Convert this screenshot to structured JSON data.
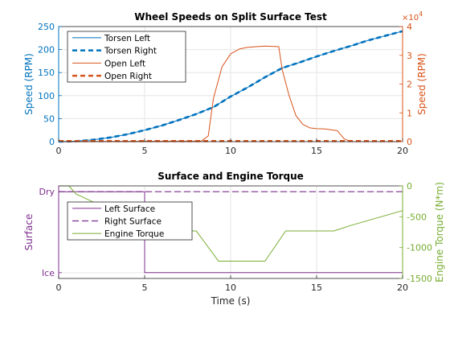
{
  "figure": {
    "colors": {
      "blue": "#0072bd",
      "orange": "#d95319",
      "purple": "#7e2f8e",
      "green": "#77ac30",
      "axis": "#262626",
      "grid": "#e6e6e6"
    }
  },
  "chart_data": [
    {
      "type": "line",
      "title": "Wheel Speeds on Split Surface Test",
      "xlim": [
        0,
        20
      ],
      "xticks": [
        "0",
        "5",
        "10",
        "15",
        "20"
      ],
      "xlabel": "",
      "left_axis": {
        "label": "Speed (RPM)",
        "ylim": [
          0,
          250
        ],
        "ticks": [
          "0",
          "50",
          "100",
          "150",
          "200",
          "250"
        ],
        "color": "#0072bd"
      },
      "right_axis": {
        "label": "Speed (RPM)",
        "ylim": [
          0,
          4
        ],
        "ticks": [
          "0",
          "1",
          "2",
          "3",
          "4"
        ],
        "exponent_base": "×10",
        "exponent_power": "4",
        "color": "#d95319"
      },
      "grid": true,
      "legend_position": "top-left",
      "series": [
        {
          "name": "Torsen Left",
          "axis": "left",
          "style": "solid",
          "color": "#0072bd",
          "x": [
            0,
            1,
            2,
            3,
            4,
            5,
            6,
            7,
            8,
            9,
            10,
            11,
            12,
            13,
            14,
            15,
            16,
            17,
            18,
            19,
            20
          ],
          "y": [
            0,
            1,
            4,
            9,
            16,
            25,
            35,
            47,
            60,
            75,
            98,
            118,
            140,
            160,
            172,
            185,
            197,
            208,
            220,
            230,
            240
          ]
        },
        {
          "name": "Torsen Right",
          "axis": "left",
          "style": "dashed",
          "color": "#0072bd",
          "x": [
            0,
            1,
            2,
            3,
            4,
            5,
            6,
            7,
            8,
            9,
            10,
            11,
            12,
            13,
            14,
            15,
            16,
            17,
            18,
            19,
            20
          ],
          "y": [
            0,
            1,
            4,
            9,
            16,
            25,
            35,
            47,
            60,
            75,
            98,
            118,
            140,
            160,
            172,
            185,
            197,
            208,
            220,
            230,
            240
          ]
        },
        {
          "name": "Open Left",
          "axis": "right",
          "style": "solid",
          "color": "#d95319",
          "x": [
            0,
            8.3,
            8.7,
            9.0,
            9.5,
            10.0,
            10.5,
            11.0,
            12.0,
            12.8,
            13.0,
            13.4,
            13.8,
            14.2,
            14.6,
            15.0,
            15.5,
            16.2,
            16.6,
            17.0,
            20
          ],
          "y": [
            0,
            0.02,
            0.2,
            1.5,
            2.6,
            3.05,
            3.22,
            3.28,
            3.32,
            3.3,
            2.5,
            1.6,
            0.9,
            0.6,
            0.48,
            0.45,
            0.44,
            0.38,
            0.1,
            0.0,
            0.0
          ]
        },
        {
          "name": "Open Right",
          "axis": "right",
          "style": "dashed",
          "color": "#d95319",
          "x": [
            0,
            20
          ],
          "y": [
            0.02,
            0.02
          ]
        }
      ]
    },
    {
      "type": "line",
      "title": "Surface and Engine Torque",
      "xlim": [
        0,
        20
      ],
      "xticks": [
        "0",
        "5",
        "10",
        "15",
        "20"
      ],
      "xlabel": "Time (s)",
      "left_axis": {
        "label": "Surface",
        "ylim": [
          0,
          1
        ],
        "tick_values": [
          0.0625,
          0.9375
        ],
        "ticks": [
          "Ice",
          "Dry"
        ],
        "color": "#7e2f8e"
      },
      "right_axis": {
        "label": "Engine Torque (N*m)",
        "ylim": [
          -1500,
          0
        ],
        "ticks": [
          "0",
          "-500",
          "-1000",
          "-1500"
        ],
        "color": "#77ac30"
      },
      "grid": true,
      "legend_position": "middle-left",
      "series": [
        {
          "name": "Left Surface",
          "axis": "left",
          "style": "solid",
          "color": "#7e2f8e",
          "x": [
            0,
            5,
            5,
            20
          ],
          "y": [
            0.9375,
            0.9375,
            0.0625,
            0.0625
          ]
        },
        {
          "name": "Right Surface",
          "axis": "left",
          "style": "dashed",
          "color": "#7e2f8e",
          "x": [
            0,
            20
          ],
          "y": [
            0.9375,
            0.9375
          ]
        },
        {
          "name": "Engine Torque",
          "axis": "right",
          "style": "solid",
          "color": "#77ac30",
          "x": [
            0,
            0.6,
            1,
            2,
            3,
            4,
            5,
            6,
            7,
            8,
            9.3,
            10,
            11,
            12,
            13.2,
            14,
            15,
            16,
            17,
            18,
            19,
            20
          ],
          "y": [
            0,
            0,
            -130,
            -260,
            -380,
            -490,
            -730,
            -730,
            -730,
            -730,
            -1220,
            -1220,
            -1220,
            -1220,
            -730,
            -730,
            -730,
            -730,
            -640,
            -560,
            -480,
            -400
          ]
        }
      ]
    }
  ]
}
